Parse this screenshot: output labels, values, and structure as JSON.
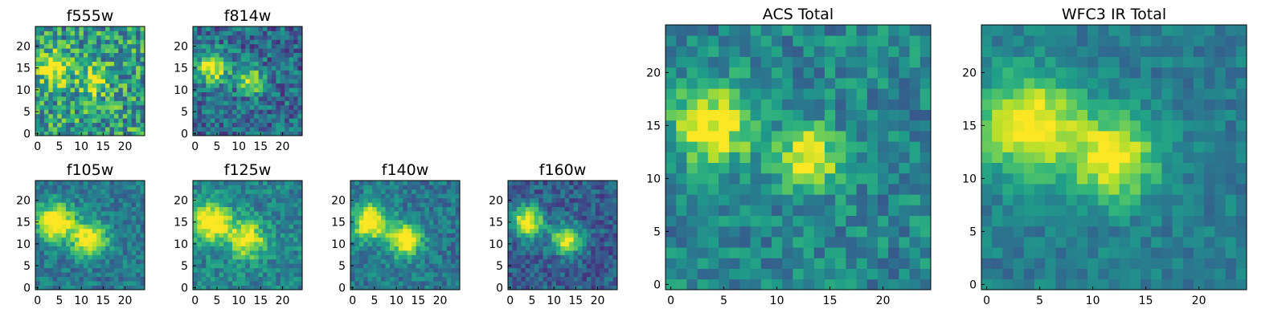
{
  "chart_data": [
    {
      "type": "heatmap",
      "title": "f555w",
      "grid": false,
      "xlim": [
        0,
        24
      ],
      "ylim": [
        0,
        24
      ],
      "x_ticks": [
        "0",
        "5",
        "10",
        "15",
        "20"
      ],
      "y_ticks": [
        "0",
        "5",
        "10",
        "15",
        "20"
      ],
      "colormap": "viridis",
      "sources": [
        {
          "x": 4,
          "y": 15,
          "amp": 0.5,
          "sigma": 2.5
        },
        {
          "x": 13,
          "y": 12,
          "amp": 0.55,
          "sigma": 2.0
        }
      ],
      "noise": 0.6,
      "background": 0.55
    },
    {
      "type": "heatmap",
      "title": "f814w",
      "grid": false,
      "xlim": [
        0,
        24
      ],
      "ylim": [
        0,
        24
      ],
      "x_ticks": [
        "0",
        "5",
        "10",
        "15",
        "20"
      ],
      "y_ticks": [
        "0",
        "5",
        "10",
        "15",
        "20"
      ],
      "colormap": "viridis",
      "sources": [
        {
          "x": 4,
          "y": 15,
          "amp": 0.7,
          "sigma": 2.5
        },
        {
          "x": 13,
          "y": 12,
          "amp": 0.6,
          "sigma": 2.0
        }
      ],
      "noise": 0.45,
      "background": 0.35
    },
    {
      "type": "heatmap",
      "title": "f105w",
      "grid": false,
      "xlim": [
        0,
        24
      ],
      "ylim": [
        0,
        24
      ],
      "x_ticks": [
        "0",
        "5",
        "10",
        "15",
        "20"
      ],
      "y_ticks": [
        "0",
        "5",
        "10",
        "15",
        "20"
      ],
      "colormap": "viridis",
      "sources": [
        {
          "x": 4,
          "y": 15,
          "amp": 0.75,
          "sigma": 3.0
        },
        {
          "x": 12,
          "y": 11,
          "amp": 0.65,
          "sigma": 2.8
        }
      ],
      "noise": 0.3,
      "background": 0.4
    },
    {
      "type": "heatmap",
      "title": "f125w",
      "grid": false,
      "xlim": [
        0,
        24
      ],
      "ylim": [
        0,
        24
      ],
      "x_ticks": [
        "0",
        "5",
        "10",
        "15",
        "20"
      ],
      "y_ticks": [
        "0",
        "5",
        "10",
        "15",
        "20"
      ],
      "colormap": "viridis",
      "sources": [
        {
          "x": 4,
          "y": 15,
          "amp": 0.7,
          "sigma": 3.0
        },
        {
          "x": 12,
          "y": 11,
          "amp": 0.6,
          "sigma": 2.8
        }
      ],
      "noise": 0.32,
      "background": 0.45
    },
    {
      "type": "heatmap",
      "title": "f140w",
      "grid": false,
      "xlim": [
        0,
        24
      ],
      "ylim": [
        0,
        24
      ],
      "x_ticks": [
        "0",
        "5",
        "10",
        "15",
        "20"
      ],
      "y_ticks": [
        "0",
        "5",
        "10",
        "15",
        "20"
      ],
      "colormap": "viridis",
      "sources": [
        {
          "x": 4,
          "y": 15,
          "amp": 0.75,
          "sigma": 2.8
        },
        {
          "x": 12,
          "y": 11,
          "amp": 0.7,
          "sigma": 2.6
        }
      ],
      "noise": 0.3,
      "background": 0.4
    },
    {
      "type": "heatmap",
      "title": "f160w",
      "grid": false,
      "xlim": [
        0,
        24
      ],
      "ylim": [
        0,
        24
      ],
      "x_ticks": [
        "0",
        "5",
        "10",
        "15",
        "20"
      ],
      "y_ticks": [
        "0",
        "5",
        "10",
        "15",
        "20"
      ],
      "colormap": "viridis",
      "sources": [
        {
          "x": 4,
          "y": 15,
          "amp": 0.75,
          "sigma": 2.5
        },
        {
          "x": 13,
          "y": 11,
          "amp": 0.7,
          "sigma": 2.3
        }
      ],
      "noise": 0.32,
      "background": 0.3
    },
    {
      "type": "heatmap",
      "title": "ACS Total",
      "grid": false,
      "xlim": [
        0,
        24
      ],
      "ylim": [
        0,
        24
      ],
      "x_ticks": [
        "0",
        "5",
        "10",
        "15",
        "20"
      ],
      "y_ticks": [
        "0",
        "5",
        "10",
        "15",
        "20"
      ],
      "colormap": "viridis",
      "sources": [
        {
          "x": 4,
          "y": 15,
          "amp": 0.6,
          "sigma": 2.6
        },
        {
          "x": 13,
          "y": 12,
          "amp": 0.6,
          "sigma": 2.0
        }
      ],
      "noise": 0.35,
      "background": 0.45
    },
    {
      "type": "heatmap",
      "title": "WFC3 IR Total",
      "grid": false,
      "xlim": [
        0,
        24
      ],
      "ylim": [
        0,
        24
      ],
      "x_ticks": [
        "0",
        "5",
        "10",
        "15",
        "20"
      ],
      "y_ticks": [
        "0",
        "5",
        "10",
        "15",
        "20"
      ],
      "colormap": "viridis",
      "sources": [
        {
          "x": 4,
          "y": 15,
          "amp": 0.65,
          "sigma": 3.2
        },
        {
          "x": 12,
          "y": 12,
          "amp": 0.6,
          "sigma": 2.8
        }
      ],
      "noise": 0.22,
      "background": 0.42
    }
  ]
}
